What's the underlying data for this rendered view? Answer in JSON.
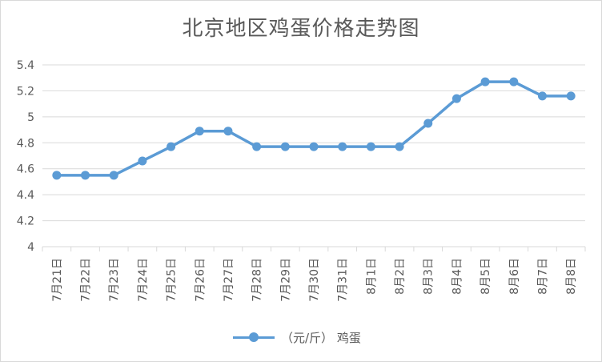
{
  "chart_data": {
    "type": "line",
    "title": "北京地区鸡蛋价格走势图",
    "categories": [
      "7月21日",
      "7月22日",
      "7月23日",
      "7月24日",
      "7月25日",
      "7月26日",
      "7月27日",
      "7月28日",
      "7月29日",
      "7月30日",
      "7月31日",
      "8月1日",
      "8月2日",
      "8月3日",
      "8月4日",
      "8月5日",
      "8月6日",
      "8月7日",
      "8月8日"
    ],
    "series": [
      {
        "name": "（元/斤） 鸡蛋",
        "color": "#5b9bd5",
        "values": [
          4.55,
          4.55,
          4.55,
          4.66,
          4.77,
          4.89,
          4.89,
          4.77,
          4.77,
          4.77,
          4.77,
          4.77,
          4.77,
          4.95,
          5.14,
          5.27,
          5.27,
          5.16,
          5.16
        ]
      }
    ],
    "yticks": [
      "4",
      "4.2",
      "4.4",
      "4.6",
      "4.8",
      "5",
      "5.2",
      "5.4"
    ],
    "ylim": [
      4,
      5.4
    ],
    "grid": true,
    "legend": "bottom"
  }
}
